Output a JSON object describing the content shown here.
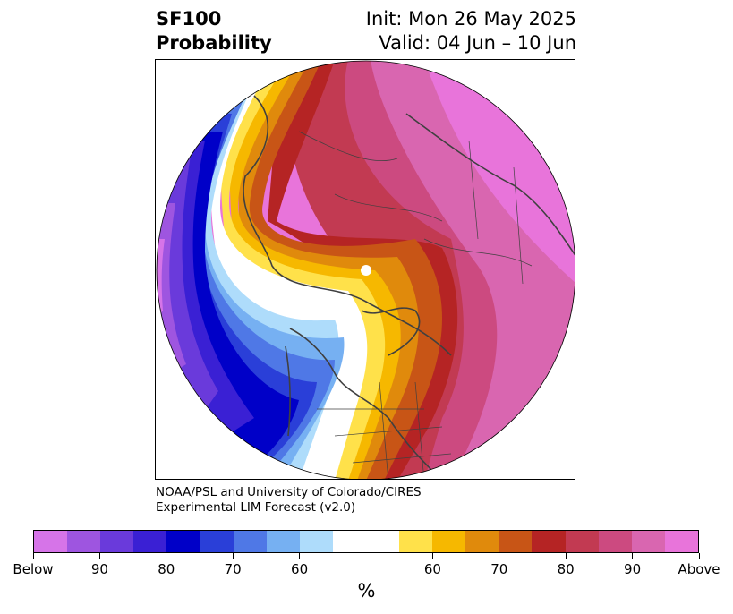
{
  "title": {
    "left_line1": "SF100",
    "left_line2": "Probability",
    "right_line1": "Init: Mon 26 May 2025",
    "right_line2": "Valid: 04 Jun – 10 Jun"
  },
  "credit": {
    "line1": "NOAA/PSL and University of Colorado/CIRES",
    "line2": "Experimental LIM Forecast (v2.0)"
  },
  "colorbar": {
    "below_colors": [
      "#d674e8",
      "#9e55e0",
      "#6a3adb",
      "#3a20d4",
      "#0000c8",
      "#2a3fd8",
      "#4f78e6",
      "#76b0f2",
      "#aedcfb"
    ],
    "neutral_color": "#ffffff",
    "above_colors": [
      "#ffe14a",
      "#f6b800",
      "#e08a0c",
      "#c85516",
      "#b52424",
      "#c23a52",
      "#cc4a80",
      "#d966b0",
      "#e874da"
    ],
    "tick_labels": [
      "Below",
      "90",
      "80",
      "70",
      "60",
      "60",
      "70",
      "80",
      "90",
      "Above"
    ],
    "units": "%"
  },
  "map": {
    "projection": "north-polar-stereographic",
    "boundary_color": "#404040"
  }
}
